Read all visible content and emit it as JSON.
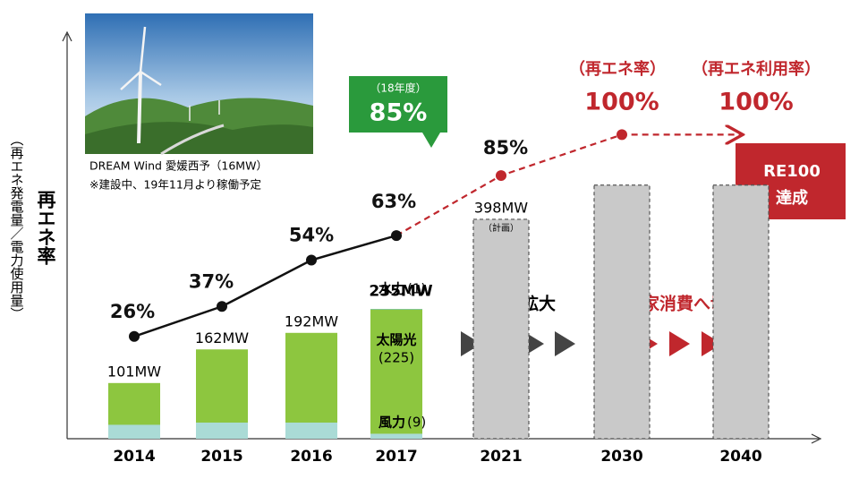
{
  "chart_data": {
    "type": "bar",
    "categories": [
      "2014",
      "2015",
      "2016",
      "2017",
      "2021",
      "2030",
      "2040"
    ],
    "values": [
      101,
      162,
      192,
      235,
      398,
      460,
      460
    ],
    "value_labels": [
      "101MW",
      "162MW",
      "192MW",
      "235MW",
      "398MW",
      null,
      null
    ],
    "planned_note": "（計画）",
    "color": "#8dc63f",
    "planned_color": "#c9c9c9",
    "ylim": [
      0,
      700
    ],
    "breakdown": {
      "category_index": 3,
      "segments": [
        {
          "name": "風力",
          "values": [
            9
          ],
          "value_labels": [
            "(9)"
          ],
          "color": "#aadbd6"
        },
        {
          "name": "太陽光",
          "values": [
            225
          ],
          "value_labels": [
            "(225)"
          ],
          "color": "#8dc63f"
        },
        {
          "name": "水力",
          "values": [
            1
          ],
          "value_labels": [
            "(1)"
          ],
          "color": "#3aa655"
        }
      ]
    },
    "line": {
      "values": [
        26,
        37,
        54,
        63,
        85,
        100,
        100
      ],
      "value_labels": [
        "26%",
        "37%",
        "54%",
        "63%",
        "85%",
        "100%",
        "100%"
      ],
      "dashed_from": 3,
      "color": "#111111",
      "dashed_color": "#c0272d",
      "y2lim": [
        -11.5,
        130
      ]
    },
    "y_label": "再エネ率",
    "y_sublabel": "（再エネ発電量／電力使用量）",
    "annotations": {
      "photo_caption": "DREAM Wind 愛媛西予（16MW）",
      "photo_note": "※建設中、19年11月より稼働予定",
      "callout_period": "（18年度）",
      "callout_value": "85%",
      "rate_2030_header": "（再エネ率）",
      "rate_2040_header": "（再エネ利用率）",
      "expansion": "量の拡大",
      "switch": "自家消費へ切替え",
      "re100_line1": "RE100",
      "re100_line2": "達成"
    }
  }
}
